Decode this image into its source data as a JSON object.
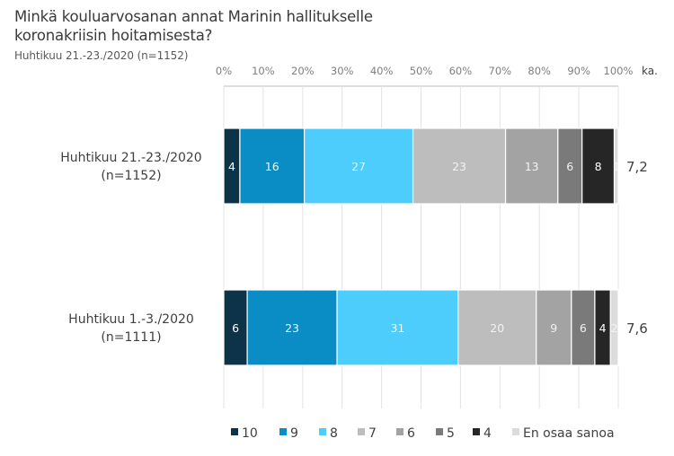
{
  "header": {
    "title_line1": "Minkä kouluarvosanan annat Marinin hallitukselle",
    "title_line2": "koronakriisin hoitamisesta?",
    "subtitle": "Huhtikuu 21.-23./2020 (n=1152)"
  },
  "chart_data": {
    "type": "bar",
    "orientation": "horizontal-stacked-100",
    "title": "Minkä kouluarvosanan annat Marinin hallitukselle koronakriisin hoitamisesta?",
    "subtitle": "Huhtikuu 21.-23./2020 (n=1152)",
    "x_ticks": [
      "0%",
      "10%",
      "20%",
      "30%",
      "40%",
      "50%",
      "60%",
      "70%",
      "80%",
      "90%",
      "100%"
    ],
    "x_range": [
      0,
      100
    ],
    "avg_header": "ka.",
    "grid": true,
    "legend_position": "bottom",
    "categories": [
      {
        "line1": "Huhtikuu 21.-23./2020",
        "line2": "(n=1152)",
        "average": "7,2"
      },
      {
        "line1": "Huhtikuu 1.-3./2020",
        "line2": "(n=1111)",
        "average": "7,6"
      }
    ],
    "series": [
      {
        "name": "10",
        "color": "#0d3349",
        "label_color": "#ffffff",
        "values": [
          4,
          6
        ]
      },
      {
        "name": "9",
        "color": "#0a8cc4",
        "label_color": "#e8f6ff",
        "values": [
          16,
          23
        ]
      },
      {
        "name": "8",
        "color": "#4dcdfb",
        "label_color": "#e8f8ff",
        "values": [
          27,
          31
        ]
      },
      {
        "name": "7",
        "color": "#bdbdbd",
        "label_color": "#f2f2f2",
        "values": [
          23,
          20
        ]
      },
      {
        "name": "6",
        "color": "#a3a3a3",
        "label_color": "#f2f2f2",
        "values": [
          13,
          9
        ]
      },
      {
        "name": "5",
        "color": "#7a7a7a",
        "label_color": "#f2f2f2",
        "values": [
          6,
          6
        ]
      },
      {
        "name": "4",
        "color": "#262626",
        "label_color": "#ffffff",
        "values": [
          8,
          4
        ]
      },
      {
        "name": "En osaa sanoa",
        "color": "#dcdcdc",
        "label_color": "#f4f4f4",
        "values": [
          1,
          2
        ]
      }
    ]
  }
}
